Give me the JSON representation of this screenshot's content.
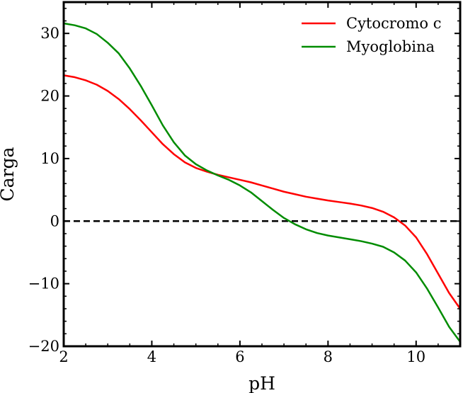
{
  "chart_data": {
    "type": "line",
    "xlabel": "pH",
    "ylabel": "Carga",
    "xlim": [
      2,
      11
    ],
    "ylim": [
      -20,
      35
    ],
    "x_ticks": [
      2,
      4,
      6,
      8,
      10
    ],
    "x_tick_labels": [
      "2",
      "4",
      "6",
      "8",
      "10"
    ],
    "y_ticks": [
      -20,
      -10,
      0,
      10,
      20,
      30
    ],
    "y_tick_labels": [
      "−20",
      "−10",
      "0",
      "10",
      "20",
      "30"
    ],
    "grid": false,
    "legend_position": "top-right",
    "reference_line": {
      "y": 0,
      "style": "dashed",
      "color": "#000000"
    },
    "series": [
      {
        "name": "Cytocromo c",
        "color": "#ff0000",
        "x": [
          2,
          2.25,
          2.5,
          2.75,
          3,
          3.25,
          3.5,
          3.75,
          4,
          4.25,
          4.5,
          4.75,
          5,
          5.25,
          5.5,
          5.75,
          6,
          6.25,
          6.5,
          6.75,
          7,
          7.25,
          7.5,
          7.75,
          8,
          8.25,
          8.5,
          8.75,
          9,
          9.25,
          9.5,
          9.75,
          10,
          10.25,
          10.5,
          10.75,
          11
        ],
        "y": [
          23.3,
          23.0,
          22.5,
          21.8,
          20.8,
          19.5,
          17.9,
          16.1,
          14.2,
          12.3,
          10.7,
          9.4,
          8.5,
          7.9,
          7.4,
          7.0,
          6.6,
          6.2,
          5.7,
          5.2,
          4.7,
          4.3,
          3.9,
          3.6,
          3.3,
          3.05,
          2.8,
          2.5,
          2.1,
          1.5,
          0.6,
          -0.7,
          -2.6,
          -5.3,
          -8.4,
          -11.5,
          -14.0
        ]
      },
      {
        "name": "Myoglobina",
        "color": "#008c00",
        "x": [
          2,
          2.25,
          2.5,
          2.75,
          3,
          3.25,
          3.5,
          3.75,
          4,
          4.25,
          4.5,
          4.75,
          5,
          5.25,
          5.5,
          5.75,
          6,
          6.25,
          6.5,
          6.75,
          7,
          7.25,
          7.5,
          7.75,
          8,
          8.25,
          8.5,
          8.75,
          9,
          9.25,
          9.5,
          9.75,
          10,
          10.25,
          10.5,
          10.75,
          11
        ],
        "y": [
          31.6,
          31.3,
          30.8,
          29.9,
          28.5,
          26.8,
          24.4,
          21.6,
          18.5,
          15.3,
          12.6,
          10.5,
          9.1,
          8.1,
          7.3,
          6.6,
          5.7,
          4.6,
          3.2,
          1.8,
          0.5,
          -0.5,
          -1.3,
          -1.9,
          -2.3,
          -2.6,
          -2.9,
          -3.2,
          -3.6,
          -4.1,
          -5.0,
          -6.3,
          -8.2,
          -10.8,
          -13.8,
          -16.9,
          -19.3
        ]
      }
    ]
  }
}
